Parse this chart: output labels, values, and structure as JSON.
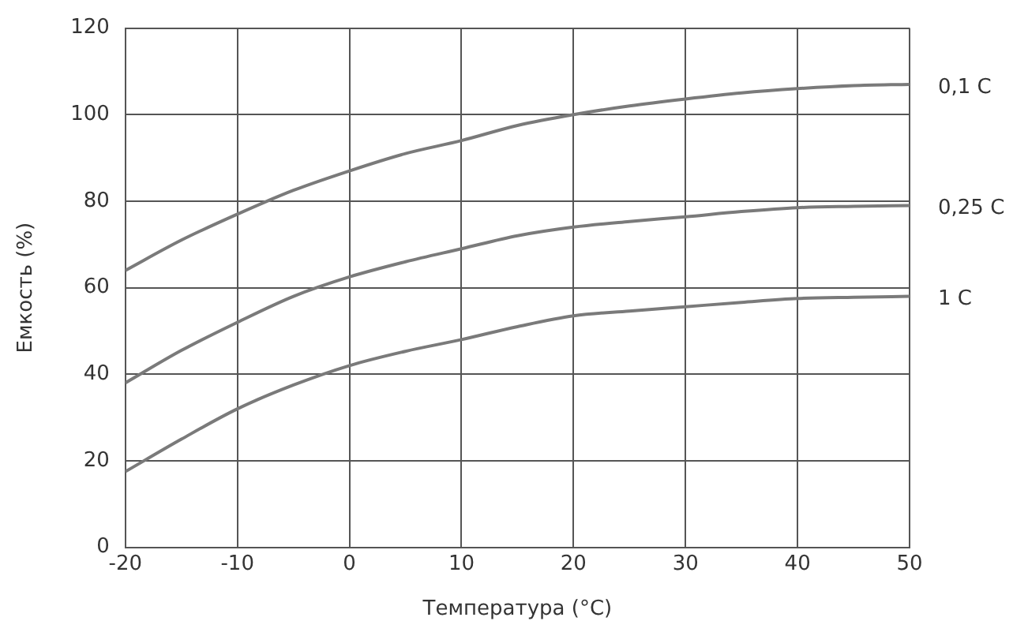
{
  "chart_data": {
    "type": "line",
    "xlabel": "Температура (°C)",
    "ylabel": "Емкость (%)",
    "x": [
      -20,
      -15,
      -10,
      -5,
      0,
      5,
      10,
      15,
      20,
      25,
      30,
      35,
      40,
      45,
      50
    ],
    "series": [
      {
        "name": "0,1 C",
        "color": "#7a7a7a",
        "values": [
          64,
          71,
          77,
          82.5,
          87,
          91,
          94,
          97.5,
          100,
          102,
          103.6,
          105,
          106,
          106.7,
          107
        ]
      },
      {
        "name": "0,25 C",
        "color": "#7a7a7a",
        "values": [
          38,
          45.5,
          52,
          58,
          62.5,
          66,
          69,
          72,
          74,
          75.3,
          76.4,
          77.6,
          78.5,
          78.8,
          79
        ]
      },
      {
        "name": "1 C",
        "color": "#7a7a7a",
        "values": [
          17.5,
          25,
          32,
          37.5,
          42,
          45.3,
          48,
          51,
          53.5,
          54.6,
          55.6,
          56.6,
          57.5,
          57.8,
          58
        ]
      }
    ],
    "xlim": [
      -20,
      50
    ],
    "xticks": [
      -20,
      -10,
      0,
      10,
      20,
      30,
      40,
      50
    ],
    "ylim": [
      0,
      120
    ],
    "yticks": [
      0,
      20,
      40,
      60,
      80,
      100,
      120
    ],
    "grid": true,
    "legend": false,
    "marker": "none",
    "line_style": "solid"
  }
}
